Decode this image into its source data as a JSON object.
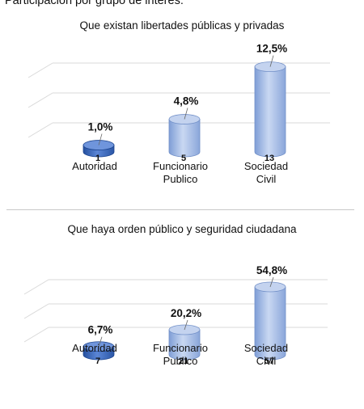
{
  "header": {
    "text": "Participación por grupo de interés:"
  },
  "charts": [
    {
      "title": "Que existan libertades públicas y privadas",
      "categories": [
        "Autoridad",
        "Funcionario Publico",
        "Sociedad Civil"
      ],
      "percent_labels": [
        "1,0%",
        "4,8%",
        "12,5%"
      ],
      "count_labels": [
        "1",
        "5",
        "13"
      ]
    },
    {
      "title": "Que haya orden público y seguridad ciudadana",
      "categories": [
        "Autoridad",
        "Funcionario Publico",
        "Sociedad Civil"
      ],
      "percent_labels": [
        "6,7%",
        "20,2%",
        "54,8%"
      ],
      "count_labels": [
        "7",
        "21",
        "57"
      ]
    }
  ],
  "chart_data": [
    {
      "type": "bar",
      "title": "Que existan libertades públicas y privadas",
      "categories": [
        "Autoridad",
        "Funcionario Publico",
        "Sociedad Civil"
      ],
      "series": [
        {
          "values": [
            1.0,
            4.8,
            12.5
          ]
        }
      ],
      "counts": [
        1,
        5,
        13
      ],
      "ylim": [
        0,
        14
      ],
      "grid": true,
      "style": "3d-cylinder",
      "colors": {
        "autoridad": "#3a6ac2",
        "other": "#a9bfe6"
      }
    },
    {
      "type": "bar",
      "title": "Que haya orden público y seguridad ciudadana",
      "categories": [
        "Autoridad",
        "Funcionario Publico",
        "Sociedad Civil"
      ],
      "series": [
        {
          "values": [
            6.7,
            20.2,
            54.8
          ]
        }
      ],
      "counts": [
        7,
        21,
        57
      ],
      "ylim": [
        0,
        60
      ],
      "grid": true,
      "style": "3d-cylinder",
      "colors": {
        "autoridad": "#3a6ac2",
        "other": "#a9bfe6"
      }
    }
  ]
}
